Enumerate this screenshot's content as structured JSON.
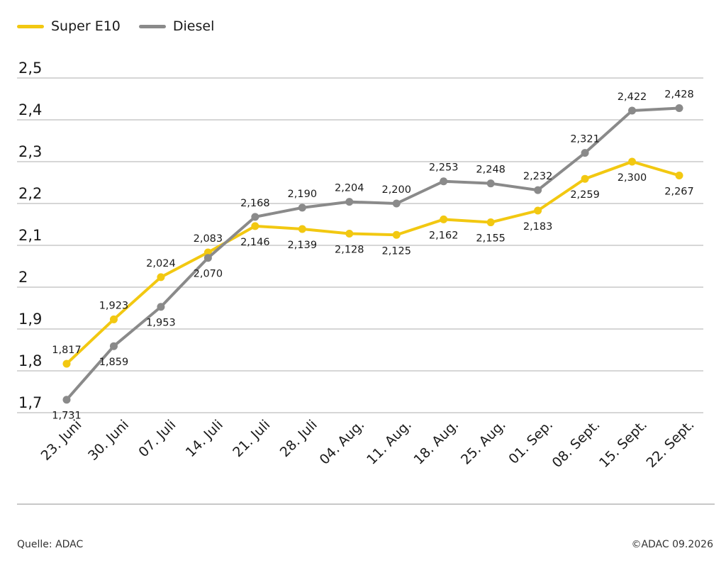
{
  "chart_data": {
    "type": "line",
    "categories": [
      "23. Juni",
      "30. Juni",
      "07. Juli",
      "14. Juli",
      "21. Juli",
      "28. Juli",
      "04. Aug.",
      "11. Aug.",
      "18. Aug.",
      "25. Aug.",
      "01. Sep.",
      "08. Sept.",
      "15. Sept.",
      "22. Sept."
    ],
    "series": [
      {
        "name": "Super E10",
        "color": "#f2c811",
        "values": [
          1.817,
          1.923,
          2.024,
          2.083,
          2.146,
          2.139,
          2.128,
          2.125,
          2.162,
          2.155,
          2.183,
          2.259,
          2.3,
          2.267
        ],
        "labels": [
          "1,817",
          "1,923",
          "2,024",
          "2,083",
          "2,146",
          "2,139",
          "2,128",
          "2,125",
          "2,162",
          "2,155",
          "2,183",
          "2,259",
          "2,300",
          "2,267"
        ]
      },
      {
        "name": "Diesel",
        "color": "#8a8a8a",
        "values": [
          1.731,
          1.859,
          1.953,
          2.07,
          2.168,
          2.19,
          2.204,
          2.2,
          2.253,
          2.248,
          2.232,
          2.321,
          2.422,
          2.428
        ],
        "labels": [
          "1,731",
          "1,859",
          "1,953",
          "2,070",
          "2,168",
          "2,190",
          "2,204",
          "2,200",
          "2,253",
          "2,248",
          "2,232",
          "2,321",
          "2,422",
          "2,428"
        ]
      }
    ],
    "yticks": [
      1.7,
      1.8,
      1.9,
      2.0,
      2.1,
      2.2,
      2.3,
      2.4,
      2.5
    ],
    "ytick_labels": [
      "1,7",
      "1,8",
      "1,9",
      "2",
      "2,1",
      "2,2",
      "2,3",
      "2,4",
      "2,5"
    ],
    "ylim": [
      1.7,
      2.5
    ],
    "grid": true,
    "legend": "top-left"
  },
  "footer": {
    "source": "Quelle: ADAC",
    "copyright": "©ADAC 09.2026"
  }
}
